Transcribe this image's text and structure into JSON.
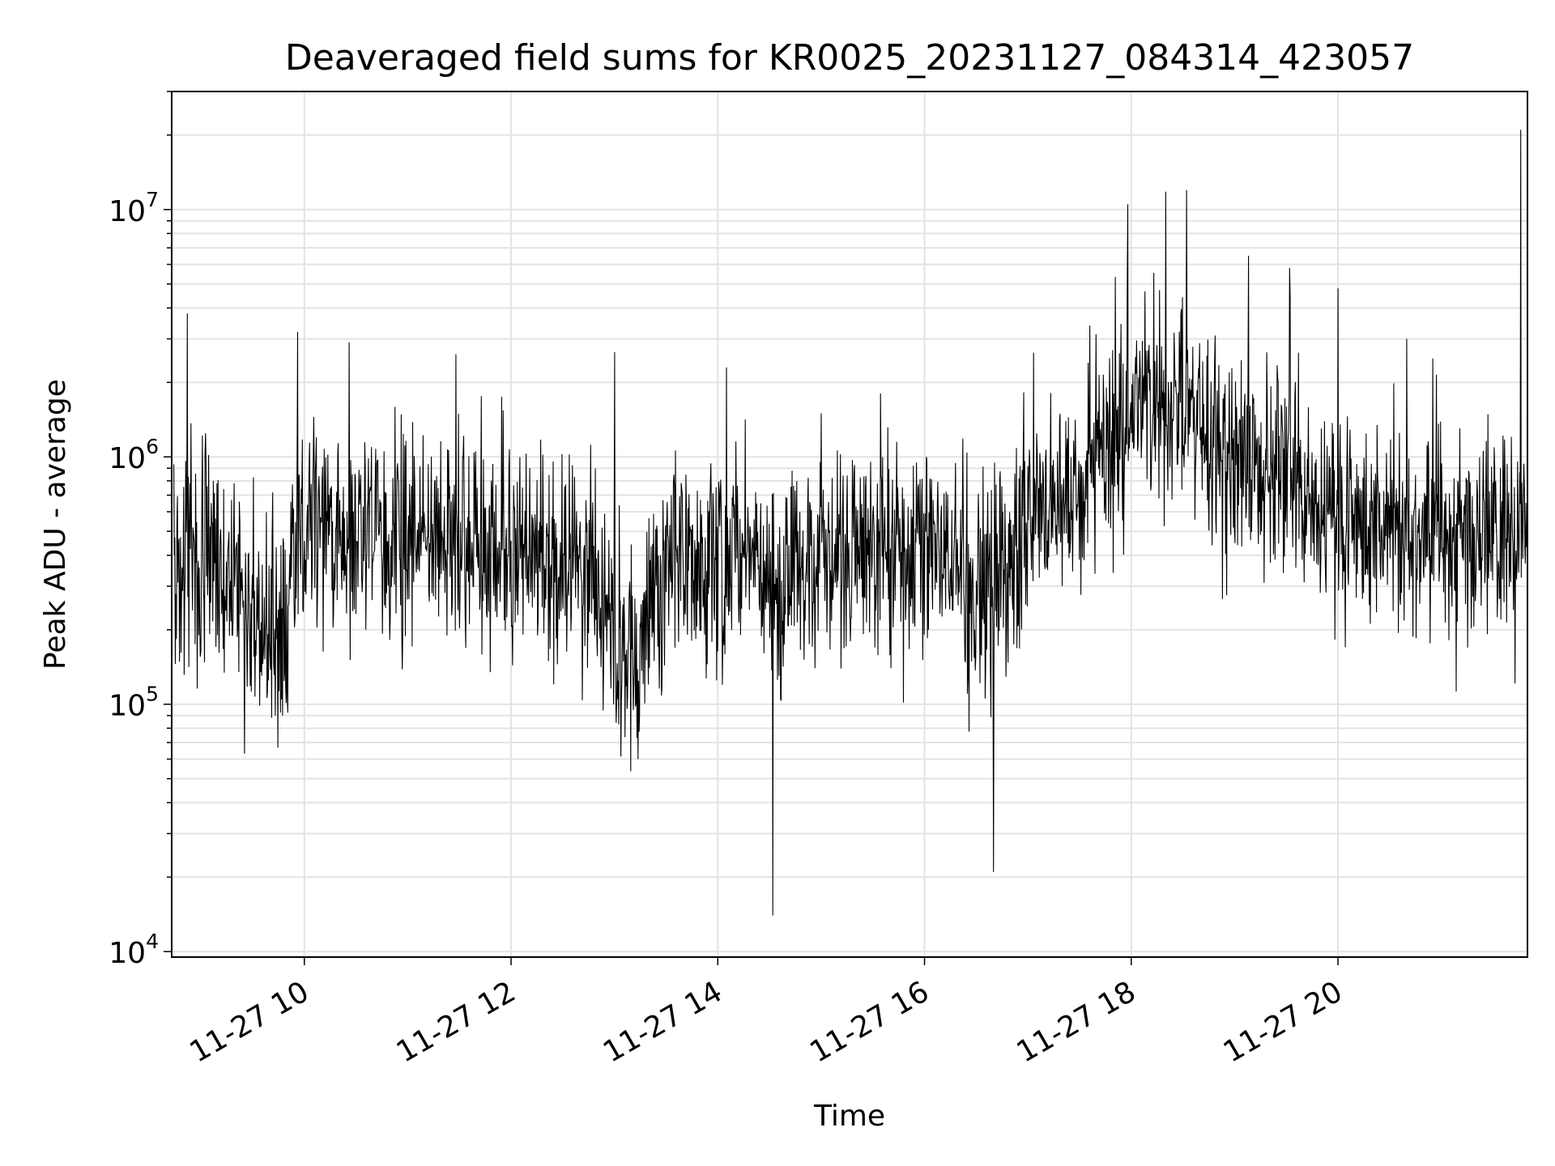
{
  "chart_data": {
    "type": "line",
    "title": "Deaveraged field sums for KR0025_20231127_084314_423057",
    "xlabel": "Time",
    "ylabel": "Peak ADU - average",
    "y_scale": "log",
    "ylim": [
      9500,
      30000000
    ],
    "xlim": [
      "11-27 08:43",
      "11-27 21:50"
    ],
    "grid": true,
    "line_color": "#000000",
    "x_ticks": [
      "11-27 10",
      "11-27 12",
      "11-27 14",
      "11-27 16",
      "11-27 18",
      "11-27 20"
    ],
    "x_tick_hours": [
      10,
      12,
      14,
      16,
      18,
      20
    ],
    "y_ticks": [
      {
        "base": "10",
        "exp": "4",
        "value": 10000
      },
      {
        "base": "10",
        "exp": "5",
        "value": 100000
      },
      {
        "base": "10",
        "exp": "6",
        "value": 1000000
      },
      {
        "base": "10",
        "exp": "7",
        "value": 10000000
      }
    ],
    "series": [
      {
        "x": [
          "11-27 08:45",
          "11-27 09:00",
          "11-27 09:15",
          "11-27 09:30",
          "11-27 09:45",
          "11-27 10:00",
          "11-27 10:15",
          "11-27 10:30",
          "11-27 10:45",
          "11-27 11:00",
          "11-27 11:15",
          "11-27 11:30",
          "11-27 11:45",
          "11-27 12:00",
          "11-27 12:15",
          "11-27 12:30",
          "11-27 12:45",
          "11-27 13:00",
          "11-27 13:15",
          "11-27 13:30",
          "11-27 13:45",
          "11-27 14:00",
          "11-27 14:15",
          "11-27 14:30",
          "11-27 14:45",
          "11-27 15:00",
          "11-27 15:15",
          "11-27 15:30",
          "11-27 15:45",
          "11-27 16:00",
          "11-27 16:15",
          "11-27 16:30",
          "11-27 16:45",
          "11-27 17:00",
          "11-27 17:15",
          "11-27 17:30",
          "11-27 17:45",
          "11-27 18:00",
          "11-27 18:15",
          "11-27 18:30",
          "11-27 18:45",
          "11-27 19:00",
          "11-27 19:15",
          "11-27 19:30",
          "11-27 19:45",
          "11-27 20:00",
          "11-27 20:15",
          "11-27 20:30",
          "11-27 20:45",
          "11-27 21:00",
          "11-27 21:15",
          "11-27 21:30",
          "11-27 21:45"
        ],
        "y": [
          450000,
          400000,
          380000,
          220000,
          200000,
          550000,
          500000,
          480000,
          520000,
          550000,
          500000,
          480000,
          450000,
          420000,
          380000,
          350000,
          400000,
          170000,
          160000,
          380000,
          400000,
          350000,
          420000,
          330000,
          300000,
          350000,
          400000,
          380000,
          420000,
          430000,
          450000,
          250000,
          280000,
          550000,
          650000,
          800000,
          1200000,
          1400000,
          2000000,
          1500000,
          1100000,
          1000000,
          800000,
          1000000,
          700000,
          650000,
          500000,
          550000,
          500000,
          450000,
          400000,
          550000,
          500000
        ],
        "peaks": [
          3800000,
          3200000,
          2900000,
          2600000,
          2650000,
          2300000,
          14000,
          1500000,
          21000,
          2400000,
          10500000,
          11800000,
          12000000,
          6500000,
          5800000,
          4800000,
          3000000,
          2500000,
          21000000
        ],
        "peak_times": [
          "11-27 08:52",
          "11-27 09:56",
          "11-27 10:26",
          "11-27 11:28",
          "11-27 13:00",
          "11-27 14:05",
          "11-27 14:32",
          "11-27 15:00",
          "11-27 16:40",
          "11-27 17:35",
          "11-27 17:58",
          "11-27 18:20",
          "11-27 18:32",
          "11-27 19:08",
          "11-27 19:32",
          "11-27 20:00",
          "11-27 20:40",
          "11-27 20:55",
          "11-27 21:46"
        ]
      }
    ]
  }
}
